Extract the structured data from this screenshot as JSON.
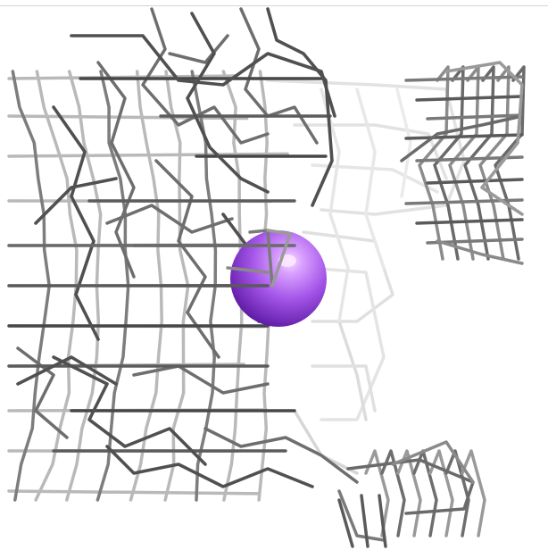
{
  "scene": {
    "background": "#ffffff",
    "mesh": {
      "dark": "#4a4a4a",
      "mid": "#7d7d7d",
      "light": "#b9b9b9",
      "faint": "#dedede"
    },
    "ion": {
      "color": "#a455e8",
      "highlight": "#f1c6ff",
      "shade": "#6a1fb0"
    }
  }
}
